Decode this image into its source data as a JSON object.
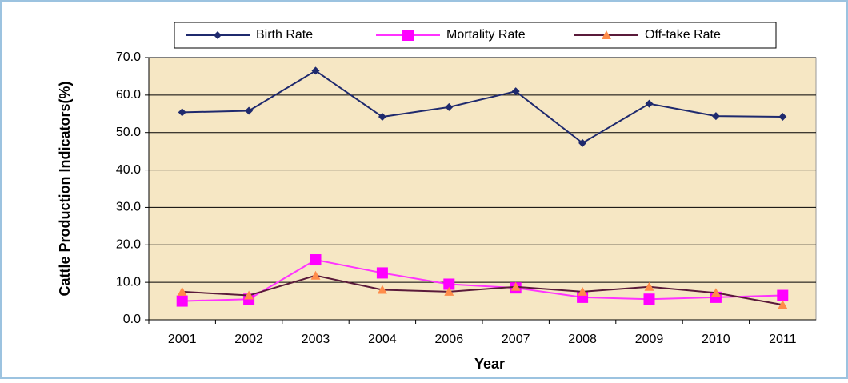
{
  "chart_data": {
    "type": "line",
    "x_label": "Year",
    "y_label": "Cattle Production Indicators(%)",
    "categories": [
      "2001",
      "2002",
      "2003",
      "2004",
      "2006",
      "2007",
      "2008",
      "2009",
      "2010",
      "2011"
    ],
    "series": [
      {
        "name": "Birth Rate",
        "color": "#1f2a6e",
        "marker": "diamond",
        "marker_color": "#1f2a6e",
        "values": [
          55.4,
          55.8,
          66.5,
          54.2,
          56.8,
          61.0,
          47.2,
          57.7,
          54.4,
          54.2
        ]
      },
      {
        "name": "Mortality Rate",
        "color": "#ff33ff",
        "marker": "square",
        "marker_color": "#ff00ff",
        "values": [
          5.0,
          5.5,
          16.0,
          12.5,
          9.5,
          8.5,
          6.0,
          5.5,
          6.0,
          6.5
        ]
      },
      {
        "name": "Off-take Rate",
        "color": "#5a1a3a",
        "marker": "triangle",
        "marker_color": "#ff8c4a",
        "values": [
          7.5,
          6.5,
          11.8,
          8.0,
          7.5,
          8.8,
          7.5,
          8.8,
          7.2,
          4.0
        ]
      }
    ],
    "ylim": [
      0,
      70
    ],
    "yticks": [
      {
        "value": 0,
        "label": "0.0"
      },
      {
        "value": 10,
        "label": "10.0"
      },
      {
        "value": 20,
        "label": "20.0"
      },
      {
        "value": 30,
        "label": "30.0"
      },
      {
        "value": 40,
        "label": "40.0"
      },
      {
        "value": 50,
        "label": "50.0"
      },
      {
        "value": 60,
        "label": "60.0"
      },
      {
        "value": 70,
        "label": "70.0"
      }
    ],
    "grid": true,
    "legend": "top"
  }
}
